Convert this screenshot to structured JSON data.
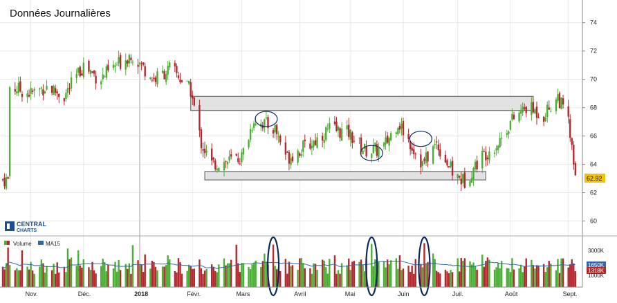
{
  "title": "Données  Journalières",
  "logo": {
    "line1": "CENTRAL",
    "line2": "CHARTS"
  },
  "colors": {
    "up": "#4caf35",
    "down": "#b5282e",
    "ma": "#2f6aa6",
    "box_fill": "#e2e2e2",
    "box_stroke": "#555555",
    "ellipse": "#0c2a5c",
    "grid": "#e8e8e8",
    "last_price_bg": "#f5c400"
  },
  "legend": [
    {
      "label": "Volume",
      "icon": "volume-legend-icon"
    },
    {
      "label": "MA15",
      "icon": "ma15-legend-icon"
    }
  ],
  "last_price": "62.92",
  "volume_labels": {
    "top": "3000K",
    "ma": "1650K",
    "last": "1318K",
    "bottom": "1000K"
  },
  "chart_data": {
    "type": "candlestick",
    "title": "Données  Journalières",
    "price_axis": {
      "ticks": [
        60,
        62,
        64,
        66,
        68,
        70,
        72,
        74
      ],
      "ylim": [
        59,
        75.5
      ]
    },
    "volume_axis": {
      "ticks": [
        "3000K",
        "1000K"
      ]
    },
    "x_labels": [
      {
        "label": "Nov.",
        "date": "2017-11-01"
      },
      {
        "label": "Déc.",
        "date": "2017-12-01"
      },
      {
        "label": "2018",
        "date": "2018-01-02"
      },
      {
        "label": "Févr.",
        "date": "2018-02-01"
      },
      {
        "label": "Mars",
        "date": "2018-03-01"
      },
      {
        "label": "Avril",
        "date": "2018-04-03"
      },
      {
        "label": "Mai",
        "date": "2018-05-02"
      },
      {
        "label": "Juin",
        "date": "2018-06-01"
      },
      {
        "label": "Juil.",
        "date": "2018-07-02"
      },
      {
        "label": "Août",
        "date": "2018-08-01"
      },
      {
        "label": "Sept.",
        "date": "2018-09-03"
      }
    ],
    "close_path": [
      {
        "date": "2017-10-20",
        "close": 69.5
      },
      {
        "date": "2017-11-01",
        "close": 69.0
      },
      {
        "date": "2017-11-10",
        "close": 69.5
      },
      {
        "date": "2017-11-20",
        "close": 68.8
      },
      {
        "date": "2017-12-01",
        "close": 71.0
      },
      {
        "date": "2017-12-10",
        "close": 70.0
      },
      {
        "date": "2017-12-20",
        "close": 71.0
      },
      {
        "date": "2017-12-28",
        "close": 71.8
      },
      {
        "date": "2018-01-10",
        "close": 70.0
      },
      {
        "date": "2018-01-20",
        "close": 70.8
      },
      {
        "date": "2018-01-31",
        "close": 69.2
      },
      {
        "date": "2018-02-06",
        "close": 65.5
      },
      {
        "date": "2018-02-12",
        "close": 64.0
      },
      {
        "date": "2018-02-21",
        "close": 64.2
      },
      {
        "date": "2018-03-01",
        "close": 64.5
      },
      {
        "date": "2018-03-08",
        "close": 67.2
      },
      {
        "date": "2018-03-20",
        "close": 66.5
      },
      {
        "date": "2018-03-27",
        "close": 64.5
      },
      {
        "date": "2018-04-10",
        "close": 65.5
      },
      {
        "date": "2018-04-20",
        "close": 66.5
      },
      {
        "date": "2018-05-01",
        "close": 66.2
      },
      {
        "date": "2018-05-10",
        "close": 65.0
      },
      {
        "date": "2018-05-20",
        "close": 65.0
      },
      {
        "date": "2018-05-29",
        "close": 67.0
      },
      {
        "date": "2018-06-05",
        "close": 65.5
      },
      {
        "date": "2018-06-12",
        "close": 64.0
      },
      {
        "date": "2018-06-20",
        "close": 65.5
      },
      {
        "date": "2018-06-30",
        "close": 63.2
      },
      {
        "date": "2018-07-06",
        "close": 62.8
      },
      {
        "date": "2018-07-15",
        "close": 64.5
      },
      {
        "date": "2018-07-25",
        "close": 65.5
      },
      {
        "date": "2018-08-01",
        "close": 67.0
      },
      {
        "date": "2018-08-10",
        "close": 68.0
      },
      {
        "date": "2018-08-20",
        "close": 67.5
      },
      {
        "date": "2018-08-28",
        "close": 68.8
      },
      {
        "date": "2018-09-03",
        "close": 67.0
      },
      {
        "date": "2018-09-07",
        "close": 62.92
      }
    ],
    "annotations": [
      {
        "kind": "resistance-zone",
        "date_from": "2018-01-31",
        "date_to": "2018-08-14",
        "price_low": 67.8,
        "price_high": 68.8
      },
      {
        "kind": "support-zone",
        "date_from": "2018-02-08",
        "date_to": "2018-07-18",
        "price_low": 62.9,
        "price_high": 63.5
      },
      {
        "kind": "ellipse",
        "panel": "price",
        "date": "2018-03-15",
        "price": 67.2
      },
      {
        "kind": "ellipse",
        "panel": "price",
        "date": "2018-05-14",
        "price": 64.8
      },
      {
        "kind": "ellipse",
        "panel": "price",
        "date": "2018-06-11",
        "price": 65.8
      },
      {
        "kind": "ellipse",
        "panel": "volume",
        "date": "2018-03-19"
      },
      {
        "kind": "ellipse",
        "panel": "volume",
        "date": "2018-05-14"
      },
      {
        "kind": "ellipse",
        "panel": "volume",
        "date": "2018-06-13"
      }
    ],
    "volume_spikes": [
      {
        "date": "2018-03-19",
        "volume_k": 2900
      },
      {
        "date": "2018-05-14",
        "volume_k": 2950
      },
      {
        "date": "2018-06-13",
        "volume_k": 3000
      }
    ],
    "ma15_level_k": 1650,
    "last_volume_k": 1318
  }
}
